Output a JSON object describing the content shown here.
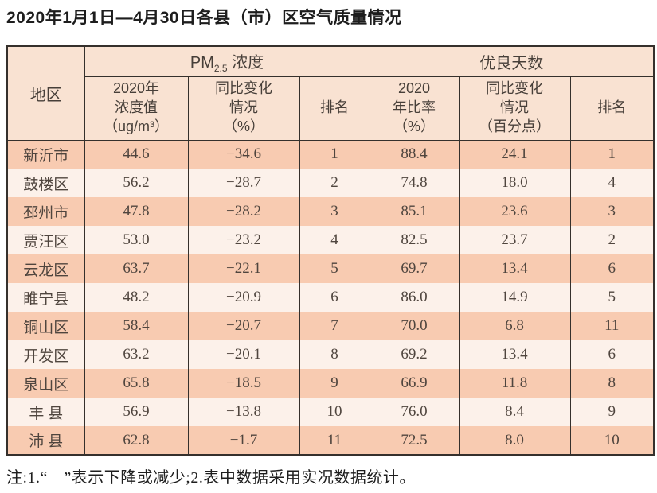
{
  "chart_data": {
    "type": "table",
    "title": "2020年1月1日—4月30日各县（市）区空气质量情况",
    "note": "注:1.“—”表示下降或减少;2.表中数据采用实况数据统计。",
    "header": {
      "region": "地区",
      "groups": [
        {
          "title_prefix": "PM",
          "title_sub": "2.5",
          "title_suffix": " 浓度",
          "columns": [
            [
              "2020年",
              "浓度值",
              "（ug/m³）"
            ],
            [
              "同比变化",
              "情况",
              "（%）"
            ],
            [
              "排名"
            ]
          ]
        },
        {
          "title": "优良天数",
          "columns": [
            [
              "2020",
              "年比率",
              "（%）"
            ],
            [
              "同比变化",
              "情况",
              "（百分点）"
            ],
            [
              "排名"
            ]
          ]
        }
      ]
    },
    "rows": [
      {
        "region": "新沂市",
        "values": [
          "44.6",
          "−34.6",
          "1",
          "88.4",
          "24.1",
          "1"
        ]
      },
      {
        "region": "鼓楼区",
        "values": [
          "56.2",
          "−28.7",
          "2",
          "74.8",
          "18.0",
          "4"
        ]
      },
      {
        "region": "邳州市",
        "values": [
          "47.8",
          "−28.2",
          "3",
          "85.1",
          "23.6",
          "3"
        ]
      },
      {
        "region": "贾汪区",
        "values": [
          "53.0",
          "−23.2",
          "4",
          "82.5",
          "23.7",
          "2"
        ]
      },
      {
        "region": "云龙区",
        "values": [
          "63.7",
          "−22.1",
          "5",
          "69.7",
          "13.4",
          "6"
        ]
      },
      {
        "region": "睢宁县",
        "values": [
          "48.2",
          "−20.9",
          "6",
          "86.0",
          "14.9",
          "5"
        ]
      },
      {
        "region": "铜山区",
        "values": [
          "58.4",
          "−20.7",
          "7",
          "70.0",
          "6.8",
          "11"
        ]
      },
      {
        "region": "开发区",
        "values": [
          "63.2",
          "−20.1",
          "8",
          "69.2",
          "13.4",
          "6"
        ]
      },
      {
        "region": "泉山区",
        "values": [
          "65.8",
          "−18.5",
          "9",
          "66.9",
          "11.8",
          "8"
        ]
      },
      {
        "region": "丰 县",
        "values": [
          "56.9",
          "−13.8",
          "10",
          "76.0",
          "8.4",
          "9"
        ]
      },
      {
        "region": "沛 县",
        "values": [
          "62.8",
          "−1.7",
          "11",
          "72.5",
          "8.0",
          "10"
        ]
      }
    ],
    "colors": {
      "header_bg": "#f9e2d2",
      "row_odd_bg": "#f8cbb1",
      "row_even_bg": "#fcf1ea",
      "border": "#35302c",
      "text": "#4f453e"
    }
  }
}
